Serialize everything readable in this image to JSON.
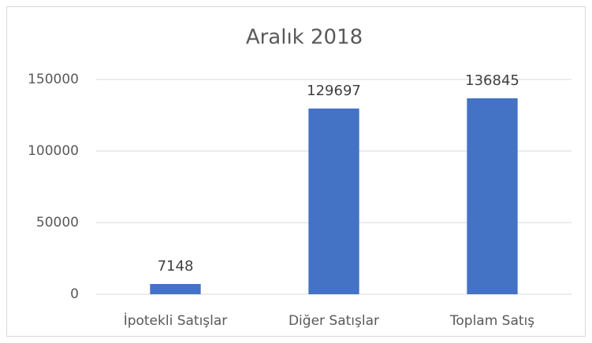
{
  "chart_data": {
    "type": "bar",
    "title": "Aralık 2018",
    "categories": [
      "İpotekli Satışlar",
      "Diğer Satışlar",
      "Toplam Satış"
    ],
    "values": [
      7148,
      129697,
      136845
    ],
    "color": "#4472c4",
    "ylim": [
      0,
      150000
    ],
    "yticks": [
      0,
      50000,
      100000,
      150000
    ],
    "grid": true
  }
}
